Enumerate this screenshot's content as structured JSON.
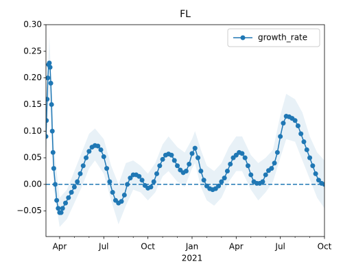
{
  "chart_data": {
    "type": "line",
    "title": "FL",
    "x": [
      2.07,
      2.1,
      2.15,
      2.2,
      2.25,
      2.3,
      2.35,
      2.4,
      2.45,
      2.5,
      2.55,
      2.6,
      2.7,
      2.8,
      2.9,
      3.0,
      3.1,
      3.2,
      3.4,
      3.6,
      3.8,
      4.0,
      4.2,
      4.4,
      4.6,
      4.8,
      5.0,
      5.2,
      5.4,
      5.6,
      5.8,
      6.0,
      6.2,
      6.4,
      6.6,
      6.8,
      7.0,
      7.2,
      7.4,
      7.6,
      7.8,
      8.0,
      8.2,
      8.4,
      8.6,
      8.8,
      9.0,
      9.2,
      9.4,
      9.6,
      9.8,
      10.0,
      10.2,
      10.4,
      10.6,
      10.8,
      11.0,
      11.2,
      11.4,
      11.6,
      11.8,
      12.0,
      12.2,
      12.4,
      12.6,
      12.8,
      13.0,
      13.2,
      13.4,
      13.6,
      13.8,
      14.0,
      14.2,
      14.4,
      14.6,
      14.8,
      15.0,
      15.2,
      15.4,
      15.6,
      15.8,
      16.0,
      16.2,
      16.4,
      16.6,
      16.8,
      17.0,
      17.2,
      17.4,
      17.6,
      17.8,
      18.0,
      18.2,
      18.4,
      18.6,
      18.8,
      19.0,
      19.2,
      19.4,
      19.6,
      19.8,
      20.0,
      20.2,
      20.4,
      20.6,
      20.8,
      21.0
    ],
    "series": [
      {
        "name": "growth_rate",
        "color": "#1f77b4",
        "values": [
          0.09,
          0.12,
          0.16,
          0.2,
          0.225,
          0.228,
          0.22,
          0.19,
          0.15,
          0.1,
          0.06,
          0.03,
          0.0,
          -0.03,
          -0.045,
          -0.053,
          -0.053,
          -0.045,
          -0.035,
          -0.025,
          -0.015,
          -0.005,
          0.005,
          0.02,
          0.035,
          0.05,
          0.062,
          0.07,
          0.073,
          0.072,
          0.065,
          0.052,
          0.03,
          0.005,
          -0.015,
          -0.03,
          -0.035,
          -0.032,
          -0.02,
          0.0,
          0.012,
          0.018,
          0.018,
          0.015,
          0.008,
          -0.002,
          -0.007,
          -0.005,
          0.005,
          0.02,
          0.035,
          0.047,
          0.055,
          0.057,
          0.055,
          0.045,
          0.035,
          0.027,
          0.022,
          0.025,
          0.038,
          0.058,
          0.068,
          0.05,
          0.025,
          0.008,
          -0.003,
          -0.008,
          -0.01,
          -0.008,
          -0.003,
          0.005,
          0.012,
          0.025,
          0.038,
          0.05,
          0.055,
          0.06,
          0.058,
          0.05,
          0.035,
          0.018,
          0.005,
          0.002,
          0.002,
          0.005,
          0.018,
          0.026,
          0.03,
          0.04,
          0.06,
          0.09,
          0.115,
          0.128,
          0.127,
          0.124,
          0.12,
          0.11,
          0.095,
          0.08,
          0.065,
          0.05,
          0.035,
          0.02,
          0.008,
          0.002,
          0.0
        ]
      }
    ],
    "band": {
      "color": "#1f77b4",
      "x": [
        2.07,
        2.3,
        2.6,
        3.0,
        3.5,
        4.0,
        4.5,
        5.0,
        5.4,
        6.0,
        6.5,
        7.0,
        7.5,
        8.0,
        8.5,
        9.0,
        9.5,
        10.0,
        10.4,
        11.0,
        11.5,
        12.0,
        12.2,
        12.6,
        13.0,
        13.5,
        14.0,
        14.5,
        15.0,
        15.4,
        16.0,
        16.5,
        17.0,
        17.5,
        18.0,
        18.4,
        19.0,
        19.5,
        20.0,
        20.5,
        21.0
      ],
      "lower": [
        0.05,
        0.175,
        -0.01,
        -0.08,
        -0.065,
        -0.035,
        -0.005,
        0.03,
        0.045,
        0.02,
        -0.03,
        -0.075,
        -0.04,
        -0.01,
        -0.015,
        -0.03,
        -0.015,
        0.015,
        0.025,
        0.005,
        -0.005,
        0.03,
        0.04,
        -0.005,
        -0.03,
        -0.04,
        -0.025,
        0.005,
        0.025,
        0.025,
        -0.01,
        -0.03,
        -0.015,
        0.005,
        0.05,
        0.085,
        0.08,
        0.045,
        0.01,
        -0.025,
        -0.045
      ],
      "upper": [
        0.13,
        0.28,
        0.07,
        -0.025,
        -0.01,
        0.025,
        0.06,
        0.095,
        0.105,
        0.085,
        0.035,
        0.0,
        0.04,
        0.045,
        0.035,
        0.02,
        0.04,
        0.075,
        0.09,
        0.07,
        0.06,
        0.085,
        0.1,
        0.065,
        0.035,
        0.025,
        0.04,
        0.07,
        0.09,
        0.09,
        0.055,
        0.04,
        0.05,
        0.065,
        0.13,
        0.17,
        0.16,
        0.135,
        0.09,
        0.06,
        0.045
      ]
    },
    "hline": 0,
    "xlim": [
      2.07,
      21
    ],
    "ylim": [
      -0.098,
      0.3
    ],
    "xticks": [
      {
        "value": 3,
        "label": "Apr"
      },
      {
        "value": 6,
        "label": "Jul"
      },
      {
        "value": 9,
        "label": "Oct"
      },
      {
        "value": 12,
        "label": "Jan"
      },
      {
        "value": 15,
        "label": "Apr"
      },
      {
        "value": 18,
        "label": "Jul"
      },
      {
        "value": 21,
        "label": "Oct"
      }
    ],
    "x_year_label": "2021",
    "xminorticks": [
      4,
      5,
      7,
      8,
      10,
      11,
      13,
      14,
      16,
      17,
      19,
      20
    ],
    "yticks": [
      {
        "value": 0.3,
        "label": "0.30"
      },
      {
        "value": 0.25,
        "label": "0.25"
      },
      {
        "value": 0.2,
        "label": "0.20"
      },
      {
        "value": 0.15,
        "label": "0.15"
      },
      {
        "value": 0.1,
        "label": "0.10"
      },
      {
        "value": 0.05,
        "label": "0.05"
      },
      {
        "value": 0,
        "label": "0.00"
      },
      {
        "value": -0.05,
        "label": "−0.05"
      }
    ],
    "legend": "upper right"
  }
}
